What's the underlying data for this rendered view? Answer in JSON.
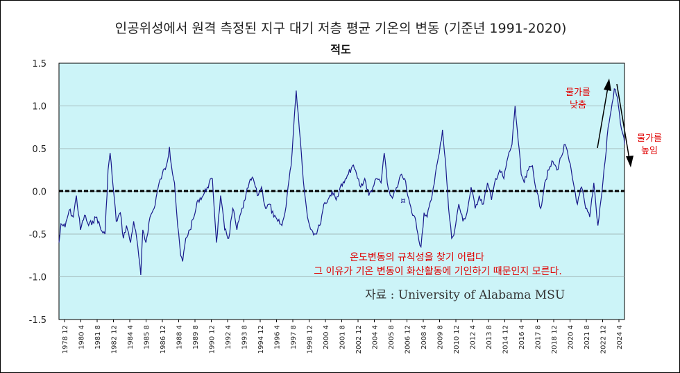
{
  "chart_data": {
    "type": "line",
    "title": "인공위성에서 원격 측정된 지구 대기 저층 평균 기온의 변동 (기준년 1991-2020)",
    "subtitle": "적도",
    "xlabel": "",
    "ylabel": "",
    "ylim": [
      -1.5,
      1.5
    ],
    "yticks": [
      -1.5,
      -1.0,
      -0.5,
      0.0,
      0.5,
      1.0,
      1.5
    ],
    "ytick_labels": [
      "-1.5",
      "-1.0",
      "-0.5",
      "0.0",
      "0.5",
      "1.0",
      "1.5"
    ],
    "xtick_labels": [
      "1978 12",
      "1980 4",
      "1981 8",
      "1982 12",
      "1984 4",
      "1985 8",
      "1986 12",
      "1988 4",
      "1989 8",
      "1990 12",
      "1992 4",
      "1993 8",
      "1994 12",
      "1996 4",
      "1997 8",
      "1998 12",
      "2000 4",
      "2001 8",
      "2002 12",
      "2004 4",
      "2005 8",
      "2006 12",
      "2008 4",
      "2009 8",
      "2010 12",
      "2012 4",
      "2013 8",
      "2014 12",
      "2016 4",
      "2017 8",
      "2018 12",
      "2020 4",
      "2021 8",
      "2022 12",
      "2024 4"
    ],
    "grid": true,
    "background_color": "#ccf4f8",
    "series_color": "#1a1a8c",
    "zero_line_color": "#000000",
    "x_start": "1978-12",
    "x_end": "2025-01",
    "anchors": [
      [
        "1978-12",
        -0.6
      ],
      [
        "1979-02",
        -0.38
      ],
      [
        "1979-06",
        -0.42
      ],
      [
        "1979-10",
        -0.22
      ],
      [
        "1980-02",
        -0.3
      ],
      [
        "1980-05",
        -0.05
      ],
      [
        "1980-09",
        -0.45
      ],
      [
        "1981-01",
        -0.28
      ],
      [
        "1981-05",
        -0.4
      ],
      [
        "1981-09",
        -0.35
      ],
      [
        "1982-01",
        -0.3
      ],
      [
        "1982-05",
        -0.45
      ],
      [
        "1982-09",
        -0.5
      ],
      [
        "1982-12",
        0.25
      ],
      [
        "1983-02",
        0.45
      ],
      [
        "1983-05",
        0.05
      ],
      [
        "1983-08",
        -0.35
      ],
      [
        "1983-12",
        -0.25
      ],
      [
        "1984-03",
        -0.55
      ],
      [
        "1984-06",
        -0.4
      ],
      [
        "1984-10",
        -0.6
      ],
      [
        "1985-01",
        -0.35
      ],
      [
        "1985-04",
        -0.55
      ],
      [
        "1985-08",
        -0.98
      ],
      [
        "1985-10",
        -0.45
      ],
      [
        "1986-01",
        -0.6
      ],
      [
        "1986-05",
        -0.3
      ],
      [
        "1986-09",
        -0.2
      ],
      [
        "1987-01",
        0.05
      ],
      [
        "1987-05",
        0.2
      ],
      [
        "1987-09",
        0.3
      ],
      [
        "1987-12",
        0.52
      ],
      [
        "1988-02",
        0.3
      ],
      [
        "1988-05",
        0.1
      ],
      [
        "1988-08",
        -0.4
      ],
      [
        "1988-11",
        -0.75
      ],
      [
        "1989-01",
        -0.82
      ],
      [
        "1989-04",
        -0.55
      ],
      [
        "1989-08",
        -0.45
      ],
      [
        "1989-12",
        -0.3
      ],
      [
        "1990-04",
        -0.1
      ],
      [
        "1990-09",
        -0.05
      ],
      [
        "1991-01",
        0.05
      ],
      [
        "1991-06",
        0.15
      ],
      [
        "1991-10",
        -0.6
      ],
      [
        "1992-02",
        -0.05
      ],
      [
        "1992-06",
        -0.45
      ],
      [
        "1992-10",
        -0.55
      ],
      [
        "1993-02",
        -0.2
      ],
      [
        "1993-06",
        -0.45
      ],
      [
        "1993-10",
        -0.25
      ],
      [
        "1994-02",
        -0.1
      ],
      [
        "1994-06",
        0.1
      ],
      [
        "1994-10",
        0.15
      ],
      [
        "1995-02",
        -0.05
      ],
      [
        "1995-06",
        0.05
      ],
      [
        "1995-10",
        -0.2
      ],
      [
        "1996-02",
        -0.15
      ],
      [
        "1996-06",
        -0.3
      ],
      [
        "1996-10",
        -0.35
      ],
      [
        "1997-02",
        -0.4
      ],
      [
        "1997-05",
        -0.25
      ],
      [
        "1997-08",
        0.05
      ],
      [
        "1997-11",
        0.3
      ],
      [
        "1998-02",
        0.85
      ],
      [
        "1998-04",
        1.18
      ],
      [
        "1998-06",
        0.9
      ],
      [
        "1998-09",
        0.45
      ],
      [
        "1998-12",
        0.0
      ],
      [
        "1999-03",
        -0.3
      ],
      [
        "1999-07",
        -0.45
      ],
      [
        "1999-11",
        -0.5
      ],
      [
        "2000-03",
        -0.4
      ],
      [
        "2000-07",
        -0.15
      ],
      [
        "2000-11",
        -0.1
      ],
      [
        "2001-03",
        0.0
      ],
      [
        "2001-07",
        -0.1
      ],
      [
        "2001-11",
        0.05
      ],
      [
        "2002-03",
        0.1
      ],
      [
        "2002-07",
        0.2
      ],
      [
        "2002-11",
        0.3
      ],
      [
        "2003-03",
        0.2
      ],
      [
        "2003-07",
        0.05
      ],
      [
        "2003-11",
        0.15
      ],
      [
        "2004-03",
        -0.05
      ],
      [
        "2004-07",
        0.05
      ],
      [
        "2004-11",
        0.15
      ],
      [
        "2005-03",
        0.1
      ],
      [
        "2005-06",
        0.45
      ],
      [
        "2005-09",
        0.1
      ],
      [
        "2005-12",
        -0.05
      ],
      [
        "2006-03",
        -0.05
      ],
      [
        "2006-07",
        0.05
      ],
      [
        "2006-11",
        0.2
      ],
      [
        "2007-02",
        0.15
      ],
      [
        "2007-05",
        -0.05
      ],
      [
        "2007-09",
        -0.25
      ],
      [
        "2007-12",
        -0.3
      ],
      [
        "2008-03",
        -0.5
      ],
      [
        "2008-06",
        -0.65
      ],
      [
        "2008-09",
        -0.25
      ],
      [
        "2008-12",
        -0.3
      ],
      [
        "2009-04",
        -0.1
      ],
      [
        "2009-08",
        0.2
      ],
      [
        "2009-12",
        0.45
      ],
      [
        "2010-03",
        0.72
      ],
      [
        "2010-06",
        0.35
      ],
      [
        "2010-09",
        -0.2
      ],
      [
        "2010-12",
        -0.55
      ],
      [
        "2011-03",
        -0.45
      ],
      [
        "2011-07",
        -0.15
      ],
      [
        "2011-11",
        -0.35
      ],
      [
        "2012-03",
        -0.25
      ],
      [
        "2012-07",
        0.05
      ],
      [
        "2012-11",
        -0.2
      ],
      [
        "2013-03",
        -0.05
      ],
      [
        "2013-07",
        -0.15
      ],
      [
        "2013-11",
        0.1
      ],
      [
        "2014-03",
        -0.1
      ],
      [
        "2014-07",
        0.15
      ],
      [
        "2014-11",
        0.25
      ],
      [
        "2015-03",
        0.15
      ],
      [
        "2015-07",
        0.4
      ],
      [
        "2015-11",
        0.55
      ],
      [
        "2016-02",
        1.0
      ],
      [
        "2016-05",
        0.6
      ],
      [
        "2016-08",
        0.2
      ],
      [
        "2016-11",
        0.1
      ],
      [
        "2017-03",
        0.25
      ],
      [
        "2017-07",
        0.3
      ],
      [
        "2017-11",
        0.0
      ],
      [
        "2018-03",
        -0.2
      ],
      [
        "2018-07",
        0.1
      ],
      [
        "2018-11",
        0.25
      ],
      [
        "2019-03",
        0.35
      ],
      [
        "2019-07",
        0.25
      ],
      [
        "2019-11",
        0.4
      ],
      [
        "2020-03",
        0.55
      ],
      [
        "2020-07",
        0.35
      ],
      [
        "2020-11",
        0.1
      ],
      [
        "2021-03",
        -0.15
      ],
      [
        "2021-07",
        0.05
      ],
      [
        "2021-11",
        -0.2
      ],
      [
        "2022-03",
        -0.3
      ],
      [
        "2022-07",
        0.1
      ],
      [
        "2022-11",
        -0.4
      ],
      [
        "2023-02",
        -0.1
      ],
      [
        "2023-06",
        0.35
      ],
      [
        "2023-09",
        0.75
      ],
      [
        "2023-12",
        0.95
      ],
      [
        "2024-03",
        1.2
      ],
      [
        "2024-06",
        1.1
      ],
      [
        "2024-09",
        0.8
      ],
      [
        "2024-12",
        0.65
      ],
      [
        "2025-01",
        0.55
      ]
    ]
  },
  "annotations": {
    "source": "자료 :  University of Alabama MSU",
    "note_line1": "온도변동의 규칙성을 찾기 어렵다",
    "note_line2": "그 이유가 기온 변동이 화산활동에 기인하기 때문인지 모른다.",
    "up_label_1": "물가를",
    "up_label_2": "낮춤",
    "down_label_1": "물가를",
    "down_label_2": "높임",
    "mark_2006": "¤",
    "note_color": "#e00000"
  }
}
